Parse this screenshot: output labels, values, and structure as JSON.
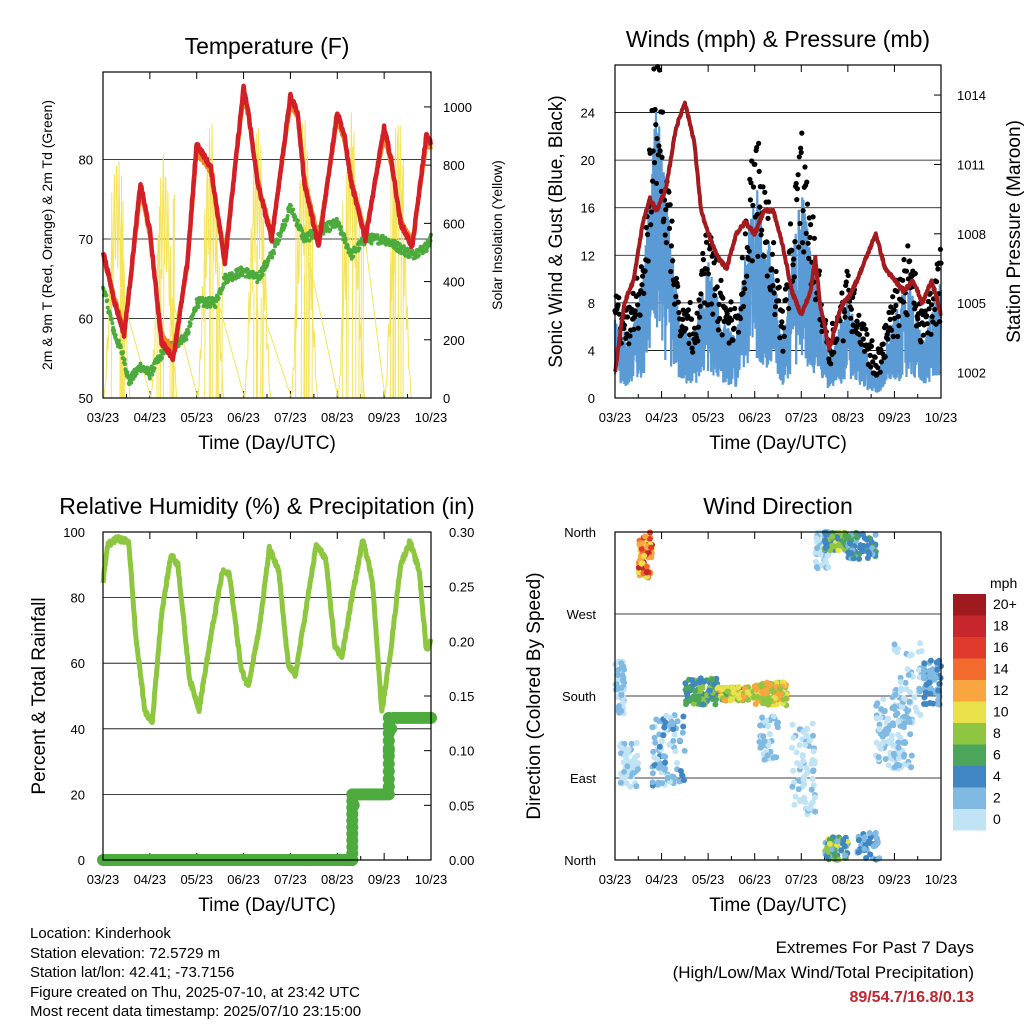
{
  "footer": {
    "location": "Location: Kinderhook",
    "elevation": "Station elevation: 72.5729 m",
    "latlon": "Station lat/lon: 42.41; -73.7156",
    "created": "Figure created on Thu, 2025-07-10, at 23:42 UTC",
    "recent": "Most recent data timestamp: 2025/07/10 23:15:00"
  },
  "extremes": {
    "title": "Extremes For Past 7 Days",
    "subtitle": "(High/Low/Max Wind/Total Precipitation)",
    "values": "89/54.7/16.8/0.13",
    "color": "#c0262d"
  },
  "chart_data": [
    {
      "id": "temperature",
      "type": "line",
      "title": "Temperature (F)",
      "xlabel": "Time (Day/UTC)",
      "ylabel": "2m & 9m T (Red, Orange) & 2m Td (Green)",
      "ylabel_right": "Solar Insolation (Yellow)",
      "x_ticks": [
        "03/23",
        "04/23",
        "05/23",
        "06/23",
        "07/23",
        "08/23",
        "09/23",
        "10/23"
      ],
      "xlim": [
        0,
        7
      ],
      "ylim": [
        50,
        91
      ],
      "yticks": [
        50,
        60,
        70,
        80
      ],
      "ylim_right": [
        0,
        1120
      ],
      "yticks_right": [
        0,
        200,
        400,
        600,
        800,
        1000
      ],
      "grid": true,
      "series": [
        {
          "color": "#d41f26",
          "x": [
            0,
            0.25,
            0.45,
            0.55,
            0.8,
            1.0,
            1.25,
            1.5,
            1.8,
            2.0,
            2.3,
            2.6,
            3.0,
            3.1,
            3.3,
            3.6,
            4.0,
            4.15,
            4.3,
            4.6,
            5.0,
            5.15,
            5.3,
            5.6,
            6.0,
            6.15,
            6.35,
            6.6,
            6.9,
            7.0
          ],
          "values": [
            68.5,
            62,
            58,
            63,
            77,
            71,
            57,
            55,
            67,
            82,
            79,
            67,
            89,
            86,
            77,
            70,
            88,
            86,
            77,
            69,
            86,
            83,
            77,
            70,
            84,
            80,
            72,
            69,
            83,
            82
          ]
        },
        {
          "color": "#f08a24",
          "x": [
            0,
            0.25,
            0.45,
            0.55,
            0.8,
            1.0,
            1.25,
            1.5,
            1.8,
            2.0,
            2.3,
            2.6,
            3.0,
            3.1,
            3.3,
            3.6,
            4.0,
            4.15,
            4.3,
            4.6,
            5.0,
            5.15,
            5.3,
            5.6,
            6.0,
            6.15,
            6.35,
            6.6,
            6.9,
            7.0
          ],
          "values": [
            68,
            62.5,
            58.5,
            63,
            76,
            70.5,
            58,
            56,
            66.5,
            81,
            78.5,
            68,
            88,
            85.5,
            77.5,
            70.5,
            87,
            85.5,
            77.5,
            70,
            85,
            82.5,
            77.5,
            70.5,
            83,
            79.5,
            72.5,
            69.5,
            82,
            81.5
          ]
        },
        {
          "color": "#4cab3c",
          "x": [
            0,
            0.25,
            0.45,
            0.55,
            0.8,
            1.0,
            1.3,
            1.6,
            1.8,
            2.0,
            2.4,
            2.6,
            3.0,
            3.3,
            3.6,
            4.0,
            4.3,
            4.6,
            5.0,
            5.3,
            5.6,
            6.0,
            6.3,
            6.6,
            6.9,
            7.0
          ],
          "values": [
            64,
            58,
            55,
            52,
            54,
            53,
            56,
            57,
            58,
            62,
            62,
            65,
            66,
            65,
            68,
            74,
            70,
            71,
            72,
            68,
            70,
            70,
            69,
            68,
            69,
            70
          ]
        },
        {
          "color": "#f5e45a",
          "kind": "solar",
          "peaks": [
            850,
            850,
            960,
            970,
            980,
            990,
            1000,
            450
          ]
        }
      ]
    },
    {
      "id": "winds",
      "type": "scatter",
      "title": "Winds (mph) & Pressure (mb)",
      "xlabel": "Time (Day/UTC)",
      "ylabel": "Sonic Wind & Gust (Blue, Black)",
      "ylabel_right": "Station Pressure (Maroon)",
      "x_ticks": [
        "03/23",
        "04/23",
        "05/23",
        "06/23",
        "07/23",
        "08/23",
        "09/23",
        "10/23"
      ],
      "xlim": [
        0,
        7
      ],
      "ylim": [
        0,
        28
      ],
      "yticks": [
        0,
        4,
        8,
        12,
        16,
        20,
        24
      ],
      "ylim_right": [
        1000.9,
        1015.3
      ],
      "yticks_right": [
        1002,
        1005,
        1008,
        1011,
        1014
      ],
      "grid": true,
      "wind_profile": {
        "x": [
          0,
          0.3,
          0.6,
          0.9,
          1.1,
          1.4,
          1.7,
          2.0,
          2.3,
          2.6,
          3.0,
          3.3,
          3.6,
          4.0,
          4.3,
          4.6,
          5.0,
          5.3,
          5.6,
          6.0,
          6.3,
          6.6,
          6.9,
          7.0
        ],
        "values": [
          4,
          3,
          6,
          15,
          10,
          4,
          3,
          7,
          4,
          3,
          11,
          8,
          3,
          11,
          6,
          2,
          5,
          3,
          1,
          4,
          6,
          3,
          5,
          6
        ]
      },
      "series": [
        {
          "name": "Gust",
          "color": "#000000"
        },
        {
          "name": "Wind",
          "color": "#5b9bd5"
        },
        {
          "name": "Pressure",
          "color": "#a31a1f",
          "x": [
            0,
            0.1,
            0.2,
            0.4,
            0.6,
            0.75,
            0.9,
            1.1,
            1.3,
            1.5,
            1.7,
            1.85,
            2.0,
            2.2,
            2.4,
            2.6,
            2.8,
            3.0,
            3.2,
            3.4,
            3.6,
            3.8,
            4.0,
            4.2,
            4.3,
            4.4,
            4.6,
            4.8,
            4.9,
            5.0,
            5.2,
            5.4,
            5.6,
            5.8,
            6.0,
            6.2,
            6.4,
            6.6,
            6.8,
            7.0
          ],
          "values": [
            1002,
            1003.5,
            1005,
            1006,
            1008.5,
            1009.5,
            1009,
            1010,
            1012.5,
            1013.7,
            1012,
            1009,
            1008,
            1007,
            1006.5,
            1008,
            1008.5,
            1008,
            1009,
            1009,
            1007.5,
            1005.5,
            1004.5,
            1005.5,
            1007,
            1005,
            1003,
            1004.5,
            1005,
            1005.2,
            1006,
            1007,
            1008,
            1006.5,
            1006,
            1005.5,
            1006,
            1005,
            1006,
            1004.5
          ]
        }
      ]
    },
    {
      "id": "humidity",
      "type": "line",
      "title": "Relative Humidity (%) & Precipitation (in)",
      "xlabel": "Time (Day/UTC)",
      "ylabel": "Percent & Total Rainfall",
      "x_ticks": [
        "03/23",
        "04/23",
        "05/23",
        "06/23",
        "07/23",
        "08/23",
        "09/23",
        "10/23"
      ],
      "xlim": [
        0,
        7
      ],
      "ylim": [
        0,
        100
      ],
      "yticks": [
        0,
        20,
        40,
        60,
        80,
        100
      ],
      "ylim_right": [
        0,
        0.3
      ],
      "yticks_right": [
        "0.00",
        "0.05",
        "0.10",
        "0.15",
        "0.20",
        "0.25",
        "0.30"
      ],
      "grid": true,
      "series": [
        {
          "name": "RH",
          "color": "#8dc63f",
          "x": [
            0,
            0.1,
            0.3,
            0.55,
            0.7,
            0.9,
            1.05,
            1.25,
            1.45,
            1.6,
            1.85,
            2.05,
            2.3,
            2.55,
            2.7,
            2.95,
            3.1,
            3.35,
            3.55,
            3.75,
            3.95,
            4.1,
            4.35,
            4.55,
            4.75,
            4.95,
            5.1,
            5.3,
            5.55,
            5.75,
            5.95,
            6.15,
            6.35,
            6.55,
            6.75,
            6.9,
            7.0
          ],
          "values": [
            85,
            96,
            98,
            97,
            68,
            45,
            42,
            75,
            93,
            90,
            55,
            46,
            68,
            88,
            87,
            58,
            53,
            72,
            95,
            88,
            60,
            56,
            78,
            96,
            92,
            65,
            62,
            79,
            98,
            85,
            45,
            65,
            90,
            97,
            88,
            64,
            67
          ]
        },
        {
          "name": "Precipitation",
          "color": "#4cab3c",
          "x": [
            0,
            5.3,
            5.33,
            5.36,
            6.05,
            6.1,
            6.15,
            6.2,
            7.0
          ],
          "values": [
            0,
            0,
            0.03,
            0.06,
            0.06,
            0.1,
            0.12,
            0.13,
            0.13
          ]
        }
      ]
    },
    {
      "id": "direction",
      "type": "scatter",
      "title": "Wind Direction",
      "xlabel": "Time (Day/UTC)",
      "ylabel": "Direction (Colored By Speed)",
      "x_ticks": [
        "03/23",
        "04/23",
        "05/23",
        "06/23",
        "07/23",
        "08/23",
        "09/23",
        "10/23"
      ],
      "xlim": [
        0,
        7
      ],
      "y_categories": [
        "North",
        "East",
        "South",
        "West",
        "North"
      ],
      "colorbar_title": "mph",
      "colorbar_labels": [
        "20+",
        "18",
        "16",
        "14",
        "12",
        "10",
        "8",
        "6",
        "4",
        "2",
        "0"
      ],
      "colorbar_colors": [
        "#9e1a1e",
        "#c7262c",
        "#e03a2c",
        "#f26b2d",
        "#f9a640",
        "#e8e14a",
        "#8ec541",
        "#4ba65b",
        "#3f86c2",
        "#80b9e2",
        "#c0e3f5"
      ],
      "clusters": [
        {
          "x": [
            0.0,
            0.2
          ],
          "dir": [
            160,
            220
          ],
          "speed": [
            1,
            4
          ],
          "n": 50
        },
        {
          "x": [
            0.1,
            0.5
          ],
          "dir": [
            80,
            130
          ],
          "speed": [
            0,
            3
          ],
          "n": 60
        },
        {
          "x": [
            0.5,
            0.8
          ],
          "dir": [
            310,
            360
          ],
          "speed": [
            10,
            19
          ],
          "n": 70
        },
        {
          "x": [
            0.8,
            1.5
          ],
          "dir": [
            80,
            160
          ],
          "speed": [
            1,
            5
          ],
          "n": 90
        },
        {
          "x": [
            1.5,
            2.2
          ],
          "dir": [
            170,
            200
          ],
          "speed": [
            4,
            9
          ],
          "n": 90
        },
        {
          "x": [
            2.2,
            3.0
          ],
          "dir": [
            175,
            190
          ],
          "speed": [
            7,
            13
          ],
          "n": 110
        },
        {
          "x": [
            3.0,
            3.7
          ],
          "dir": [
            170,
            195
          ],
          "speed": [
            8,
            14
          ],
          "n": 100
        },
        {
          "x": [
            3.1,
            3.5
          ],
          "dir": [
            110,
            160
          ],
          "speed": [
            1,
            4
          ],
          "n": 40
        },
        {
          "x": [
            3.8,
            4.3
          ],
          "dir": [
            50,
            150
          ],
          "speed": [
            0,
            3
          ],
          "n": 70
        },
        {
          "x": [
            4.3,
            4.6
          ],
          "dir": [
            320,
            360
          ],
          "speed": [
            0,
            3
          ],
          "n": 50
        },
        {
          "x": [
            4.5,
            5.0
          ],
          "dir": [
            340,
            360
          ],
          "speed": [
            4,
            11
          ],
          "n": 80
        },
        {
          "x": [
            4.5,
            5.0
          ],
          "dir": [
            0,
            25
          ],
          "speed": [
            3,
            11
          ],
          "n": 70
        },
        {
          "x": [
            5.0,
            5.6
          ],
          "dir": [
            330,
            360
          ],
          "speed": [
            3,
            7
          ],
          "n": 60
        },
        {
          "x": [
            5.2,
            5.7
          ],
          "dir": [
            0,
            30
          ],
          "speed": [
            2,
            5
          ],
          "n": 40
        },
        {
          "x": [
            5.6,
            6.4
          ],
          "dir": [
            100,
            180
          ],
          "speed": [
            0,
            4
          ],
          "n": 110
        },
        {
          "x": [
            6.0,
            6.6
          ],
          "dir": [
            150,
            240
          ],
          "speed": [
            0,
            3
          ],
          "n": 50
        },
        {
          "x": [
            6.6,
            7.0
          ],
          "dir": [
            170,
            220
          ],
          "speed": [
            2,
            6
          ],
          "n": 60
        }
      ]
    }
  ]
}
